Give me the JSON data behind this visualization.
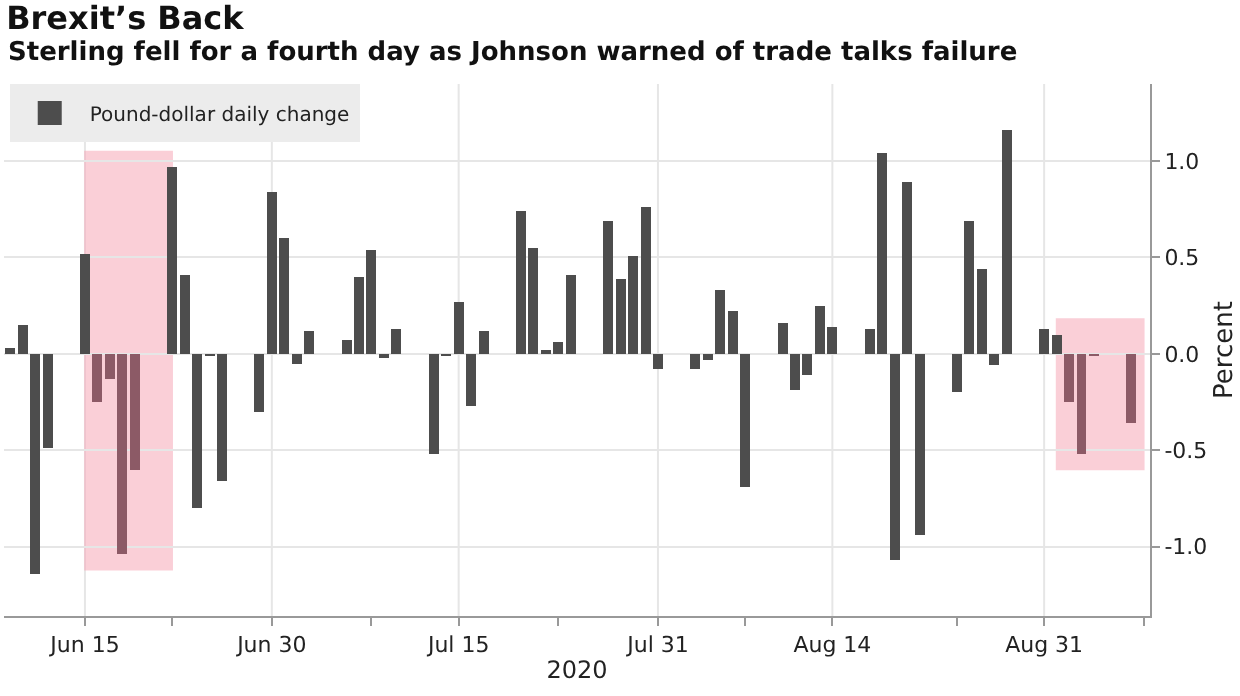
{
  "chart_data": {
    "type": "bar",
    "title": "Brexit’s Back",
    "subtitle": "Sterling fell for a fourth day as Johnson warned of trade talks failure",
    "xlabel": "2020",
    "ylabel": "Percent",
    "x": [
      "2020-06-09",
      "2020-06-10",
      "2020-06-11",
      "2020-06-12",
      "2020-06-15",
      "2020-06-16",
      "2020-06-17",
      "2020-06-18",
      "2020-06-19",
      "2020-06-22",
      "2020-06-23",
      "2020-06-24",
      "2020-06-25",
      "2020-06-26",
      "2020-06-29",
      "2020-06-30",
      "2020-07-01",
      "2020-07-02",
      "2020-07-03",
      "2020-07-06",
      "2020-07-07",
      "2020-07-08",
      "2020-07-09",
      "2020-07-10",
      "2020-07-13",
      "2020-07-14",
      "2020-07-15",
      "2020-07-16",
      "2020-07-17",
      "2020-07-20",
      "2020-07-21",
      "2020-07-22",
      "2020-07-23",
      "2020-07-24",
      "2020-07-27",
      "2020-07-28",
      "2020-07-29",
      "2020-07-30",
      "2020-07-31",
      "2020-08-03",
      "2020-08-04",
      "2020-08-05",
      "2020-08-06",
      "2020-08-07",
      "2020-08-10",
      "2020-08-11",
      "2020-08-12",
      "2020-08-13",
      "2020-08-14",
      "2020-08-17",
      "2020-08-18",
      "2020-08-19",
      "2020-08-20",
      "2020-08-21",
      "2020-08-24",
      "2020-08-25",
      "2020-08-26",
      "2020-08-27",
      "2020-08-28",
      "2020-08-31",
      "2020-09-01",
      "2020-09-02",
      "2020-09-03",
      "2020-09-04",
      "2020-09-07"
    ],
    "series": [
      {
        "name": "Pound-dollar daily change",
        "color": "#4d4d4d",
        "colors": [
          "#4d4d4d",
          "#4d4d4d",
          "#4d4d4d",
          "#4d4d4d",
          "#4d4d4d",
          "#8c5a66",
          "#8c5a66",
          "#8c5a66",
          "#8c5a66",
          "#4d4d4d",
          "#4d4d4d",
          "#4d4d4d",
          "#4d4d4d",
          "#4d4d4d",
          "#4d4d4d",
          "#4d4d4d",
          "#4d4d4d",
          "#4d4d4d",
          "#4d4d4d",
          "#4d4d4d",
          "#4d4d4d",
          "#4d4d4d",
          "#4d4d4d",
          "#4d4d4d",
          "#4d4d4d",
          "#4d4d4d",
          "#4d4d4d",
          "#4d4d4d",
          "#4d4d4d",
          "#4d4d4d",
          "#4d4d4d",
          "#4d4d4d",
          "#4d4d4d",
          "#4d4d4d",
          "#4d4d4d",
          "#4d4d4d",
          "#4d4d4d",
          "#4d4d4d",
          "#4d4d4d",
          "#4d4d4d",
          "#4d4d4d",
          "#4d4d4d",
          "#4d4d4d",
          "#4d4d4d",
          "#4d4d4d",
          "#4d4d4d",
          "#4d4d4d",
          "#4d4d4d",
          "#4d4d4d",
          "#4d4d4d",
          "#4d4d4d",
          "#4d4d4d",
          "#4d4d4d",
          "#4d4d4d",
          "#4d4d4d",
          "#4d4d4d",
          "#4d4d4d",
          "#4d4d4d",
          "#4d4d4d",
          "#4d4d4d",
          "#4d4d4d",
          "#8c5a66",
          "#8c5a66",
          "#8c5a66",
          "#8c5a66"
        ],
        "values": [
          0.03,
          0.15,
          -1.14,
          -0.49,
          0.52,
          -0.25,
          -0.13,
          -1.04,
          -0.6,
          0.97,
          0.41,
          -0.8,
          -0.01,
          -0.66,
          -0.3,
          0.84,
          0.6,
          -0.05,
          0.12,
          0.07,
          0.4,
          0.54,
          -0.02,
          0.13,
          -0.52,
          -0.01,
          0.27,
          -0.27,
          0.12,
          0.74,
          0.55,
          0.02,
          0.06,
          0.41,
          0.69,
          0.39,
          0.51,
          0.76,
          -0.08,
          -0.08,
          -0.03,
          0.33,
          0.22,
          -0.69,
          0.16,
          -0.19,
          -0.11,
          0.25,
          0.14,
          0.13,
          1.04,
          -1.07,
          0.89,
          -0.94,
          -0.2,
          0.69,
          0.44,
          -0.06,
          1.16,
          0.13,
          0.1,
          -0.25,
          -0.52,
          -0.01,
          -0.36
        ]
      }
    ],
    "bands": [
      {
        "axis": "x",
        "from": "2020-06-15",
        "to": "2020-06-22",
        "color": "#f7a8b8"
      },
      {
        "axis": "x",
        "from": "2020-09-01",
        "to": "2020-09-08",
        "color": "#f7a8b8"
      }
    ],
    "xlim": [
      "2020-06-08T12:00",
      "2020-09-08T12:00"
    ],
    "xticks": [
      {
        "value": "2020-06-15",
        "label": "Jun 15"
      },
      {
        "value": "2020-06-22",
        "label": null
      },
      {
        "value": "2020-06-30",
        "label": "Jun 30"
      },
      {
        "value": "2020-07-08",
        "label": null
      },
      {
        "value": "2020-07-15",
        "label": "Jul 15"
      },
      {
        "value": "2020-07-23",
        "label": null
      },
      {
        "value": "2020-07-31",
        "label": "Jul 31"
      },
      {
        "value": "2020-08-07",
        "label": null
      },
      {
        "value": "2020-08-14",
        "label": "Aug 14"
      },
      {
        "value": "2020-08-24",
        "label": null
      },
      {
        "value": "2020-08-31",
        "label": "Aug 31"
      },
      {
        "value": "2020-09-08",
        "label": null
      }
    ],
    "ylim": [
      -1.36,
      1.4
    ],
    "yticks": [
      {
        "value": -1,
        "label": "-1.0"
      },
      {
        "value": -0.5,
        "label": "-0.5"
      },
      {
        "value": 0,
        "label": "0.0"
      },
      {
        "value": 0.5,
        "label": "0.5"
      },
      {
        "value": 1,
        "label": "1.0"
      }
    ],
    "grid": true,
    "legend": "top left"
  }
}
